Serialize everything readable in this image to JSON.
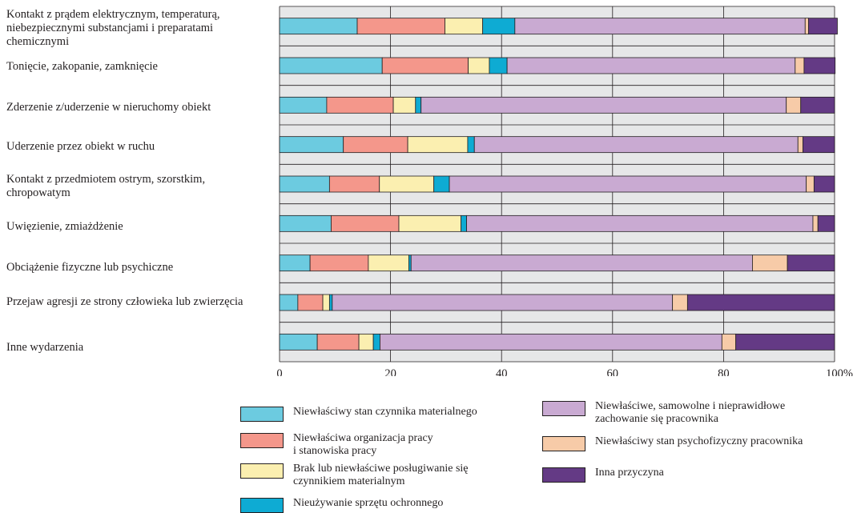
{
  "chart_data": {
    "type": "bar",
    "stacked": true,
    "orientation": "horizontal",
    "xlim": [
      0,
      100
    ],
    "x_ticks": [
      "0",
      "20",
      "40",
      "60",
      "80",
      "100%"
    ],
    "grid": true,
    "categories": [
      "Kontakt z prądem elektrycznym, temperaturą, niebezpiecznymi substancjami i preparatami chemicznymi",
      "Tonięcie, zakopanie, zamknięcie",
      "Zderzenie z/uderzenie w nieruchomy obiekt",
      "Uderzenie przez obiekt w ruchu",
      "Kontakt z przedmiotem ostrym, szorstkim, chropowatym",
      "Uwięzienie, zmiażdżenie",
      "Obciążenie fizyczne lub psychiczne",
      "Przejaw agresji ze strony człowieka lub zwierzęcia",
      "Inne wydarzenia"
    ],
    "series": [
      {
        "name": "Niewłaściwy stan czynnika materialnego",
        "color": "#6ccbe0",
        "values": [
          14.0,
          18.5,
          8.5,
          11.5,
          9.0,
          9.3,
          5.5,
          3.3,
          6.8
        ]
      },
      {
        "name": "Niewłaściwa organizacja pracy\ni stanowiska pracy",
        "color": "#f4978b",
        "values": [
          15.8,
          15.5,
          12.0,
          11.6,
          9.0,
          12.2,
          10.5,
          4.5,
          7.5
        ]
      },
      {
        "name": "Brak lub niewłaściwe posługiwanie się\nczynnikiem materialnym",
        "color": "#fbefb0",
        "values": [
          6.8,
          3.8,
          4.0,
          10.8,
          9.8,
          11.2,
          7.3,
          1.2,
          2.6
        ]
      },
      {
        "name": "Nieużywanie sprzętu ochronnego",
        "color": "#0eabd3",
        "values": [
          5.8,
          3.2,
          1.0,
          1.2,
          2.8,
          1.0,
          0.4,
          0.5,
          1.2
        ]
      },
      {
        "name": "Niewłaściwe, samowolne i nieprawidłowe\nzachowanie się pracownika",
        "color": "#c9aad2",
        "values": [
          52.3,
          51.9,
          65.8,
          58.3,
          64.3,
          62.4,
          61.5,
          61.3,
          61.6
        ]
      },
      {
        "name": "Niewłaściwy stan psychofizyczny pracownika",
        "color": "#f7cba8",
        "values": [
          0.6,
          1.6,
          2.6,
          0.9,
          1.4,
          0.9,
          6.3,
          2.7,
          2.5
        ]
      },
      {
        "name": "Inna przyczyna",
        "color": "#643a85",
        "values": [
          5.2,
          5.6,
          6.1,
          5.7,
          3.7,
          3.0,
          8.5,
          26.5,
          17.8
        ]
      }
    ]
  }
}
